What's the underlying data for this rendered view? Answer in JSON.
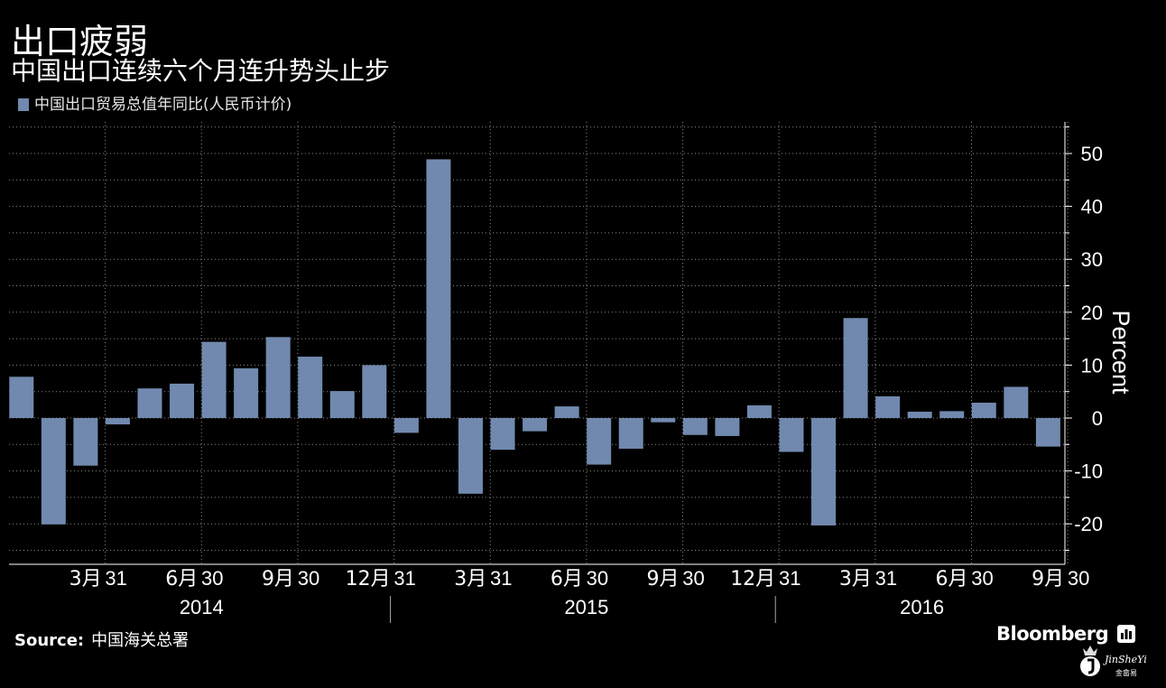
{
  "title": "出口疲弱",
  "subtitle": "中国出口连续六个月连升势头止步",
  "legend": {
    "label": "中国出口贸易总值年同比(人民币计价)",
    "color": "#7189ae"
  },
  "source": {
    "label": "Source:",
    "text": "中国海关总署"
  },
  "brand": {
    "name": "Bloomberg",
    "icon": "bloomberg-bars-icon"
  },
  "watermark": {
    "name": "JinSheYi",
    "sub": "金畲易"
  },
  "colors": {
    "background": "#000000",
    "bar": "#7189ae",
    "grid": "#8a8a8a",
    "text": "#ffffff"
  },
  "chart_data": {
    "type": "bar",
    "title": "出口疲弱",
    "ylabel": "Percent",
    "xlabel": "",
    "ylim": [
      -27,
      55
    ],
    "yticks": [
      -20,
      -10,
      0,
      10,
      20,
      30,
      40,
      50
    ],
    "grid": true,
    "series": [
      {
        "name": "中国出口贸易总值年同比(人民币计价)",
        "values": [
          7.8,
          -20.1,
          -9.0,
          -1.2,
          5.6,
          6.5,
          14.4,
          9.4,
          15.3,
          11.6,
          5.1,
          10.0,
          -2.8,
          48.9,
          -14.3,
          -6.0,
          -2.5,
          2.2,
          -8.8,
          -5.8,
          -0.8,
          -3.2,
          -3.4,
          2.4,
          -6.4,
          -20.3,
          18.9,
          4.1,
          1.2,
          1.3,
          2.9,
          5.9,
          -5.4
        ]
      }
    ],
    "categories": [
      "2014-01",
      "2014-02",
      "2014-03",
      "2014-04",
      "2014-05",
      "2014-06",
      "2014-07",
      "2014-08",
      "2014-09",
      "2014-10",
      "2014-11",
      "2014-12",
      "2015-01",
      "2015-02",
      "2015-03",
      "2015-04",
      "2015-05",
      "2015-06",
      "2015-07",
      "2015-08",
      "2015-09",
      "2015-10",
      "2015-11",
      "2015-12",
      "2016-01",
      "2016-02",
      "2016-03",
      "2016-04",
      "2016-05",
      "2016-06",
      "2016-07",
      "2016-08",
      "2016-09"
    ],
    "xtick_labels": [
      {
        "month": "3月",
        "day": "31",
        "index": 2
      },
      {
        "month": "6月",
        "day": "30",
        "index": 5
      },
      {
        "month": "9月",
        "day": "30",
        "index": 8
      },
      {
        "month": "12月",
        "day": "31",
        "index": 11
      },
      {
        "month": "3月",
        "day": "31",
        "index": 14
      },
      {
        "month": "6月",
        "day": "30",
        "index": 17
      },
      {
        "month": "9月",
        "day": "30",
        "index": 20
      },
      {
        "month": "12月",
        "day": "31",
        "index": 23
      },
      {
        "month": "3月",
        "day": "31",
        "index": 26
      },
      {
        "month": "6月",
        "day": "30",
        "index": 29
      },
      {
        "month": "9月",
        "day": "30",
        "index": 32
      }
    ],
    "year_labels": [
      {
        "label": "2014",
        "start": 0,
        "end": 11
      },
      {
        "label": "2015",
        "start": 12,
        "end": 23
      },
      {
        "label": "2016",
        "start": 24,
        "end": 32
      }
    ]
  }
}
